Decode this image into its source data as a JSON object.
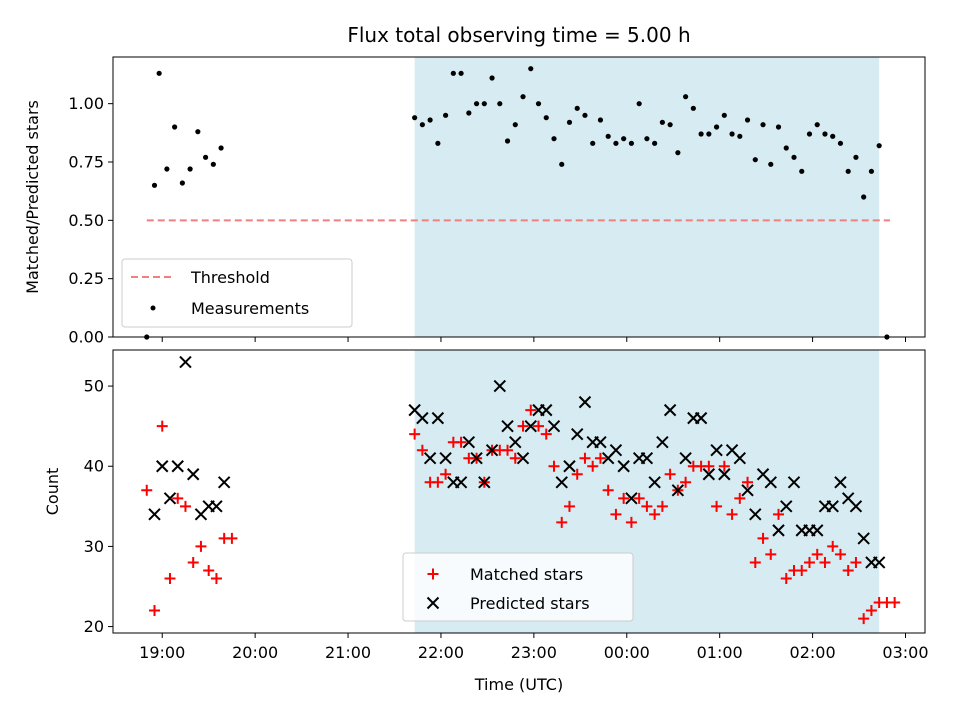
{
  "chart_data": [
    {
      "panel": "top",
      "type": "scatter",
      "title": "Flux total observing time = 5.00 h",
      "xlabel": "",
      "ylabel": "Matched/Predicted stars",
      "ylim": [
        0.0,
        1.2
      ],
      "yticks": [
        "0.00",
        "0.25",
        "0.50",
        "0.75",
        "1.00"
      ],
      "xlim": [
        18.47,
        27.21
      ],
      "x_tick_labels_shown": false,
      "shaded_span": {
        "from": "21:43",
        "to": "26:43"
      },
      "legend": {
        "location": "lower left",
        "entries": [
          "Threshold",
          "Measurements"
        ]
      },
      "series": [
        {
          "name": "Threshold",
          "kind": "line",
          "style": "dashed",
          "color": "#f08080",
          "x": [
            "18:50",
            "26:50"
          ],
          "y": [
            0.5,
            0.5
          ]
        },
        {
          "name": "Measurements",
          "kind": "scatter",
          "marker": "dot",
          "color": "#000000",
          "x": [
            "18:50",
            "18:55",
            "18:58",
            "19:03",
            "19:08",
            "19:13",
            "19:18",
            "19:23",
            "19:28",
            "19:33",
            "19:38",
            "21:43",
            "21:48",
            "21:53",
            "21:58",
            "22:03",
            "22:08",
            "22:13",
            "22:18",
            "22:23",
            "22:28",
            "22:33",
            "22:38",
            "22:43",
            "22:48",
            "22:53",
            "22:58",
            "23:03",
            "23:08",
            "23:13",
            "23:18",
            "23:23",
            "23:28",
            "23:33",
            "23:38",
            "23:43",
            "23:48",
            "23:53",
            "23:58",
            "24:03",
            "24:08",
            "24:13",
            "24:18",
            "24:23",
            "24:28",
            "24:33",
            "24:38",
            "24:43",
            "24:48",
            "24:53",
            "24:58",
            "25:03",
            "25:08",
            "25:13",
            "25:18",
            "25:23",
            "25:28",
            "25:33",
            "25:38",
            "25:43",
            "25:48",
            "25:53",
            "25:58",
            "26:03",
            "26:08",
            "26:13",
            "26:18",
            "26:23",
            "26:28",
            "26:33",
            "26:38",
            "26:43",
            "26:48"
          ],
          "y": [
            0.0,
            0.65,
            1.13,
            0.72,
            0.9,
            0.66,
            0.72,
            0.88,
            0.77,
            0.74,
            0.81,
            0.94,
            0.91,
            0.93,
            0.83,
            0.95,
            1.13,
            1.13,
            0.96,
            1.0,
            1.0,
            1.11,
            1.0,
            0.84,
            0.91,
            1.03,
            1.15,
            1.0,
            0.94,
            0.85,
            0.74,
            0.92,
            0.98,
            0.95,
            0.83,
            0.93,
            0.86,
            0.83,
            0.85,
            0.83,
            1.0,
            0.85,
            0.83,
            0.92,
            0.91,
            0.79,
            1.03,
            0.98,
            0.87,
            0.87,
            0.9,
            0.95,
            0.87,
            0.86,
            0.93,
            0.76,
            0.91,
            0.74,
            0.9,
            0.81,
            0.77,
            0.71,
            0.87,
            0.91,
            0.87,
            0.86,
            0.83,
            0.71,
            0.77,
            0.6,
            0.71,
            0.82,
            0.0
          ]
        }
      ]
    },
    {
      "panel": "bottom",
      "type": "scatter",
      "title": "",
      "xlabel": "Time (UTC)",
      "ylabel": "Count",
      "ylim": [
        19.2,
        54.5
      ],
      "yticks": [
        "20",
        "30",
        "40",
        "50"
      ],
      "xlim": [
        18.47,
        27.21
      ],
      "xticks": [
        "19:00",
        "20:00",
        "21:00",
        "22:00",
        "23:00",
        "00:00",
        "01:00",
        "02:00",
        "03:00"
      ],
      "shaded_span": {
        "from": "21:43",
        "to": "26:43"
      },
      "legend": {
        "location": "lower center",
        "entries": [
          "Matched stars",
          "Predicted stars"
        ]
      },
      "series": [
        {
          "name": "Matched stars",
          "kind": "scatter",
          "marker": "plus",
          "color": "#ff0000",
          "x": [
            "18:50",
            "18:55",
            "19:00",
            "19:05",
            "19:10",
            "19:15",
            "19:20",
            "19:25",
            "19:30",
            "19:35",
            "19:40",
            "19:45",
            "21:43",
            "21:48",
            "21:53",
            "21:58",
            "22:03",
            "22:08",
            "22:13",
            "22:18",
            "22:23",
            "22:28",
            "22:33",
            "22:38",
            "22:43",
            "22:48",
            "22:53",
            "22:58",
            "23:03",
            "23:08",
            "23:13",
            "23:18",
            "23:23",
            "23:28",
            "23:33",
            "23:38",
            "23:43",
            "23:48",
            "23:53",
            "23:58",
            "24:03",
            "24:08",
            "24:13",
            "24:18",
            "24:23",
            "24:28",
            "24:33",
            "24:38",
            "24:43",
            "24:48",
            "24:53",
            "24:58",
            "25:03",
            "25:08",
            "25:13",
            "25:18",
            "25:23",
            "25:28",
            "25:33",
            "25:38",
            "25:43",
            "25:48",
            "25:53",
            "25:58",
            "26:03",
            "26:08",
            "26:13",
            "26:18",
            "26:23",
            "26:28",
            "26:33",
            "26:38",
            "26:43",
            "26:48",
            "26:53"
          ],
          "y": [
            37,
            22,
            45,
            26,
            36,
            35,
            28,
            30,
            27,
            26,
            31,
            31,
            44,
            42,
            38,
            38,
            39,
            43,
            43,
            41,
            41,
            38,
            42,
            42,
            42,
            41,
            45,
            47,
            45,
            44,
            40,
            33,
            35,
            39,
            41,
            40,
            41,
            37,
            34,
            36,
            33,
            36,
            35,
            34,
            35,
            39,
            37,
            38,
            40,
            40,
            40,
            35,
            40,
            34,
            36,
            38,
            28,
            31,
            29,
            34,
            26,
            27,
            27,
            28,
            29,
            28,
            30,
            29,
            27,
            28,
            21,
            22,
            23,
            23,
            23
          ]
        },
        {
          "name": "Predicted stars",
          "kind": "scatter",
          "marker": "x",
          "color": "#000000",
          "x": [
            "18:55",
            "19:00",
            "19:05",
            "19:10",
            "19:15",
            "19:20",
            "19:25",
            "19:30",
            "19:35",
            "19:40",
            "21:43",
            "21:48",
            "21:53",
            "21:58",
            "22:03",
            "22:08",
            "22:13",
            "22:18",
            "22:23",
            "22:28",
            "22:33",
            "22:38",
            "22:43",
            "22:48",
            "22:53",
            "22:58",
            "23:03",
            "23:08",
            "23:13",
            "23:18",
            "23:23",
            "23:28",
            "23:33",
            "23:38",
            "23:43",
            "23:48",
            "23:53",
            "23:58",
            "24:03",
            "24:08",
            "24:13",
            "24:18",
            "24:23",
            "24:28",
            "24:33",
            "24:38",
            "24:43",
            "24:48",
            "24:53",
            "24:58",
            "25:03",
            "25:08",
            "25:13",
            "25:18",
            "25:23",
            "25:28",
            "25:33",
            "25:38",
            "25:43",
            "25:48",
            "25:53",
            "25:58",
            "26:03",
            "26:08",
            "26:13",
            "26:18",
            "26:23",
            "26:28",
            "26:33",
            "26:38",
            "26:43"
          ],
          "y": [
            34,
            40,
            36,
            40,
            53,
            39,
            34,
            35,
            35,
            38,
            47,
            46,
            41,
            46,
            41,
            38,
            38,
            43,
            41,
            38,
            42,
            50,
            45,
            43,
            41,
            45,
            47,
            47,
            45,
            38,
            40,
            44,
            48,
            43,
            43,
            41,
            42,
            40,
            36,
            41,
            41,
            38,
            43,
            47,
            37,
            41,
            46,
            46,
            39,
            42,
            39,
            42,
            41,
            37,
            34,
            39,
            38,
            32,
            35,
            38,
            32,
            32,
            32,
            35,
            35,
            38,
            36,
            35,
            31,
            28,
            28
          ]
        }
      ]
    }
  ]
}
